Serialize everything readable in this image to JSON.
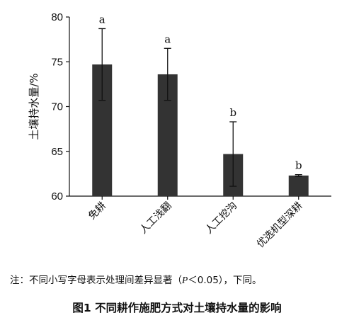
{
  "chart_data": {
    "type": "bar",
    "categories": [
      "免耕",
      "人工浅翻",
      "人工挖沟",
      "优选机型深耕"
    ],
    "values": [
      74.7,
      73.6,
      64.7,
      62.3
    ],
    "errors": [
      4.0,
      2.9,
      3.6,
      0.1
    ],
    "significance": [
      "a",
      "a",
      "b",
      "b"
    ],
    "xlabel": "",
    "ylabel": "土壤持水量/%",
    "ylim": [
      60,
      80
    ],
    "yticks": [
      "60",
      "65",
      "70",
      "75",
      "80"
    ],
    "grid": false,
    "bar_color": "#333333"
  },
  "note": {
    "prefix": "注：不同小写字母表示处理间差异显著（",
    "p_symbol": "P",
    "suffix": "＜0.05），下同。"
  },
  "caption": "图1  不同耕作施肥方式对土壤持水量的影响"
}
